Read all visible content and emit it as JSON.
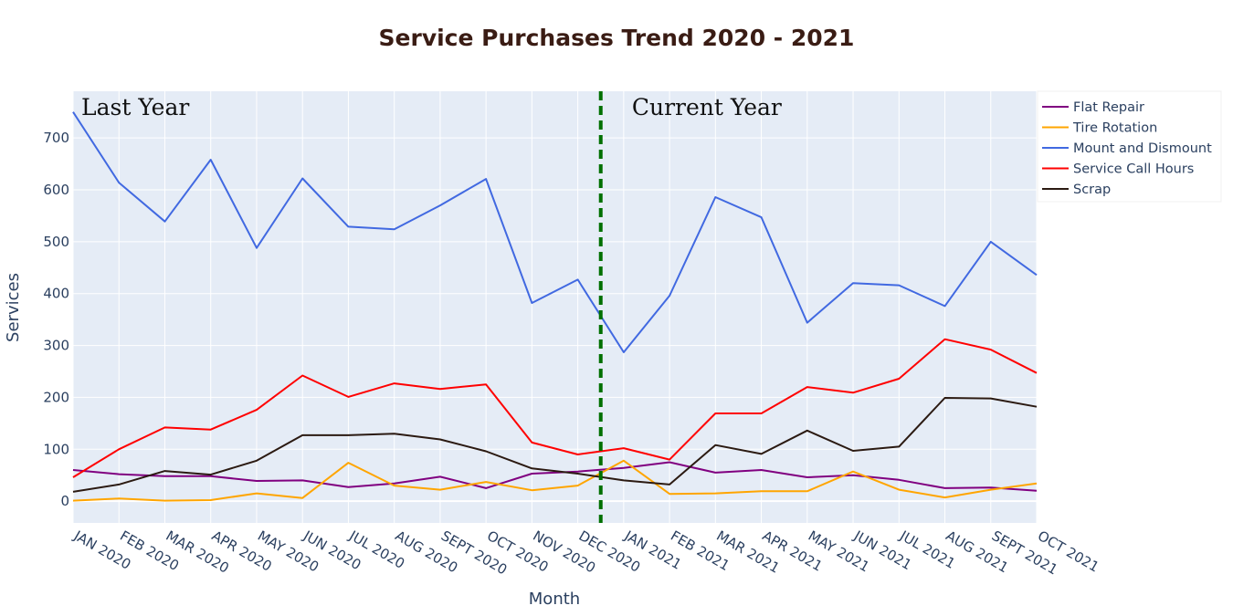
{
  "chart_data": {
    "type": "line",
    "title": "Service Purchases Trend 2020 - 2021",
    "xlabel": "Month",
    "ylabel": "Services",
    "ylim": [
      -42,
      790
    ],
    "yticks": [
      0,
      100,
      200,
      300,
      400,
      500,
      600,
      700
    ],
    "grid": true,
    "legend_position": "right",
    "categories": [
      "JAN 2020",
      "FEB 2020",
      "MAR 2020",
      "APR 2020",
      "MAY 2020",
      "JUN 2020",
      "JUL 2020",
      "AUG 2020",
      "SEPT 2020",
      "OCT 2020",
      "NOV 2020",
      "DEC 2020",
      "JAN 2021",
      "FEB 2021",
      "MAR 2021",
      "APR 2021",
      "MAY 2021",
      "JUN 2021",
      "JUL 2021",
      "AUG 2021",
      "SEPT 2021",
      "OCT 2021"
    ],
    "series": [
      {
        "name": "Flat Repair",
        "color": "#800080",
        "values": [
          60,
          52,
          48,
          48,
          39,
          40,
          27,
          34,
          47,
          25,
          53,
          57,
          64,
          75,
          55,
          60,
          46,
          50,
          41,
          25,
          26,
          20
        ]
      },
      {
        "name": "Tire Rotation",
        "color": "#ffa500",
        "values": [
          1,
          5,
          1,
          2,
          15,
          6,
          74,
          30,
          22,
          37,
          21,
          30,
          78,
          14,
          15,
          19,
          19,
          57,
          22,
          7,
          22,
          34
        ]
      },
      {
        "name": "Mount and Dismount",
        "color": "#4169e1",
        "values": [
          750,
          614,
          539,
          658,
          488,
          622,
          529,
          524,
          570,
          621,
          382,
          427,
          287,
          396,
          586,
          547,
          344,
          420,
          416,
          376,
          500,
          436
        ]
      },
      {
        "name": "Service Call Hours",
        "color": "#ff0000",
        "values": [
          46,
          100,
          142,
          138,
          176,
          242,
          201,
          227,
          216,
          225,
          113,
          90,
          102,
          80,
          169,
          169,
          220,
          209,
          236,
          312,
          292,
          247
        ]
      },
      {
        "name": "Scrap",
        "color": "#2b1a12",
        "values": [
          18,
          32,
          58,
          51,
          78,
          127,
          127,
          130,
          119,
          96,
          63,
          53,
          40,
          32,
          108,
          91,
          136,
          97,
          105,
          199,
          198,
          182
        ]
      }
    ],
    "annotations": [
      {
        "text": "Last Year",
        "at_category": "JAN 2020",
        "placement": "top-left"
      },
      {
        "text": "Current Year",
        "at_category": "JAN 2021",
        "placement": "top"
      }
    ],
    "divider": {
      "position_between": [
        "DEC 2020",
        "JAN 2021"
      ],
      "color": "#007000",
      "style": "dashed"
    }
  }
}
